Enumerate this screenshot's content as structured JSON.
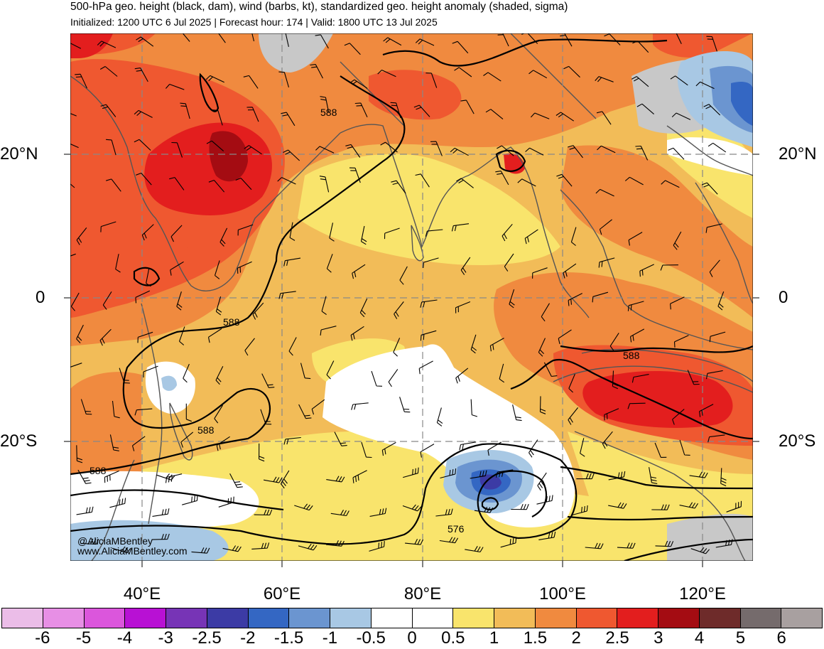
{
  "header": {
    "title": "500-hPa geo. height (black, dam), wind (barbs, kt), standardized geo. height anomaly (shaded, sigma)",
    "subtitle": "Initialized: 1200 UTC 6 Jul 2025 | Forecast hour: 174 | Valid: 1800 UTC 13 Jul 2025"
  },
  "axes": {
    "lat_labels": [
      "20°N",
      "0",
      "20°S"
    ],
    "lon_labels": [
      "40°E",
      "60°E",
      "80°E",
      "100°E",
      "120°E"
    ]
  },
  "contours": {
    "labels": [
      "588",
      "588",
      "588",
      "588",
      "588",
      "576"
    ]
  },
  "credits": {
    "handle": "@AliciaMBentley",
    "website": "www.AliciaMBentley.com"
  },
  "colorbar": {
    "labels": [
      "-6",
      "-5",
      "-4",
      "-3",
      "-2.5",
      "-2",
      "-1.5",
      "-1",
      "-0.5",
      "0",
      "0.5",
      "1",
      "1.5",
      "2",
      "2.5",
      "3",
      "4",
      "5",
      "6"
    ],
    "colors": [
      "#ebbde8",
      "#e78fe5",
      "#db56dc",
      "#b811d4",
      "#7734b6",
      "#3c3ba5",
      "#3467c3",
      "#6b95d0",
      "#a8c8e4",
      "#ffffff",
      "#ffffff",
      "#f9e46c",
      "#f2bc58",
      "#f08a3f",
      "#ef5830",
      "#e31e1e",
      "#a40c12",
      "#6e2b2a",
      "#756b6c",
      "#a8a0a0"
    ]
  },
  "map_colors": {
    "ocean_base": "#f5c05b",
    "land_outline": "#555555",
    "contour": "#000000",
    "grid": "#888888"
  }
}
